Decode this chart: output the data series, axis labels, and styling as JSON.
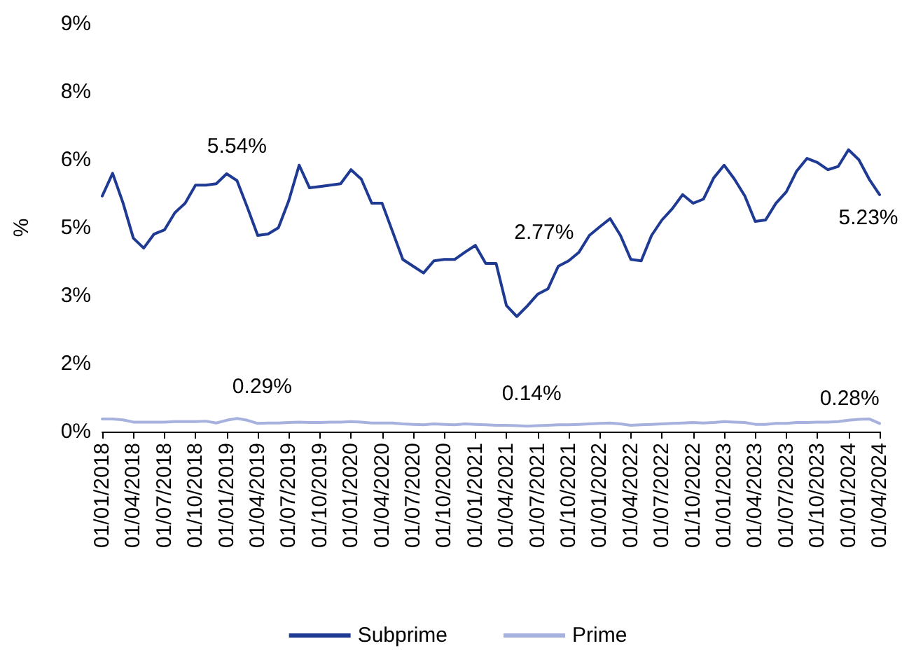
{
  "chart_data": {
    "type": "line",
    "ylabel": "%",
    "legend": "bottom",
    "grid": false,
    "marker": "none",
    "line_style": "solid",
    "x": [
      "2018-01",
      "2018-02",
      "2018-03",
      "2018-04",
      "2018-05",
      "2018-06",
      "2018-07",
      "2018-08",
      "2018-09",
      "2018-10",
      "2018-11",
      "2018-12",
      "2019-01",
      "2019-02",
      "2019-03",
      "2019-04",
      "2019-05",
      "2019-06",
      "2019-07",
      "2019-08",
      "2019-09",
      "2019-10",
      "2019-11",
      "2019-12",
      "2020-01",
      "2020-02",
      "2020-03",
      "2020-04",
      "2020-05",
      "2020-06",
      "2020-07",
      "2020-08",
      "2020-09",
      "2020-10",
      "2020-11",
      "2020-12",
      "2021-01",
      "2021-02",
      "2021-03",
      "2021-04",
      "2021-05",
      "2021-06",
      "2021-07",
      "2021-08",
      "2021-09",
      "2021-10",
      "2021-11",
      "2021-12",
      "2022-01",
      "2022-02",
      "2022-03",
      "2022-04",
      "2022-05",
      "2022-06",
      "2022-07",
      "2022-08",
      "2022-09",
      "2022-10",
      "2022-11",
      "2022-12",
      "2023-01",
      "2023-02",
      "2023-03",
      "2023-04",
      "2023-05",
      "2023-06",
      "2023-07",
      "2023-08",
      "2023-09",
      "2023-10",
      "2023-11",
      "2023-12",
      "2024-01",
      "2024-02",
      "2024-03",
      "2024-04"
    ],
    "series": [
      {
        "name": "Subprime",
        "color": "#1f3a93",
        "values": [
          5.2,
          5.7,
          5.05,
          4.27,
          4.05,
          4.36,
          4.45,
          4.83,
          5.04,
          5.44,
          5.44,
          5.47,
          5.69,
          5.54,
          4.95,
          4.33,
          4.36,
          4.5,
          5.1,
          5.88,
          5.38,
          5.41,
          5.44,
          5.47,
          5.78,
          5.57,
          5.04,
          5.04,
          4.42,
          3.8,
          3.65,
          3.5,
          3.77,
          3.8,
          3.8,
          3.96,
          4.11,
          3.71,
          3.71,
          2.78,
          2.54,
          2.77,
          3.03,
          3.15,
          3.65,
          3.77,
          3.96,
          4.33,
          4.52,
          4.7,
          4.33,
          3.8,
          3.77,
          4.33,
          4.67,
          4.92,
          5.23,
          5.04,
          5.13,
          5.6,
          5.88,
          5.57,
          5.2,
          4.64,
          4.67,
          5.04,
          5.29,
          5.75,
          6.03,
          5.94,
          5.78,
          5.85,
          6.22,
          6.0,
          5.57,
          5.23
        ]
      },
      {
        "name": "Prime",
        "color": "#a7b1dd",
        "values": [
          0.28,
          0.28,
          0.26,
          0.21,
          0.21,
          0.21,
          0.21,
          0.22,
          0.22,
          0.22,
          0.23,
          0.19,
          0.25,
          0.29,
          0.25,
          0.18,
          0.19,
          0.19,
          0.2,
          0.21,
          0.2,
          0.2,
          0.21,
          0.21,
          0.22,
          0.21,
          0.19,
          0.19,
          0.19,
          0.17,
          0.16,
          0.15,
          0.17,
          0.16,
          0.15,
          0.17,
          0.16,
          0.15,
          0.14,
          0.14,
          0.13,
          0.12,
          0.13,
          0.14,
          0.15,
          0.15,
          0.16,
          0.17,
          0.18,
          0.19,
          0.17,
          0.14,
          0.15,
          0.16,
          0.17,
          0.18,
          0.19,
          0.2,
          0.19,
          0.2,
          0.22,
          0.21,
          0.2,
          0.16,
          0.16,
          0.18,
          0.18,
          0.2,
          0.2,
          0.21,
          0.21,
          0.22,
          0.25,
          0.27,
          0.28,
          0.18
        ]
      }
    ],
    "xlim": [
      "2018-01",
      "2024-04"
    ],
    "xticks": [
      {
        "value": "2018-01",
        "label": "01/01/2018"
      },
      {
        "value": "2018-04",
        "label": "01/04/2018"
      },
      {
        "value": "2018-07",
        "label": "01/07/2018"
      },
      {
        "value": "2018-10",
        "label": "01/10/2018"
      },
      {
        "value": "2019-01",
        "label": "01/01/2019"
      },
      {
        "value": "2019-04",
        "label": "01/04/2019"
      },
      {
        "value": "2019-07",
        "label": "01/07/2019"
      },
      {
        "value": "2019-10",
        "label": "01/10/2019"
      },
      {
        "value": "2020-01",
        "label": "01/01/2020"
      },
      {
        "value": "2020-04",
        "label": "01/04/2020"
      },
      {
        "value": "2020-07",
        "label": "01/07/2020"
      },
      {
        "value": "2020-10",
        "label": "01/10/2020"
      },
      {
        "value": "2021-01",
        "label": "01/01/2021"
      },
      {
        "value": "2021-04",
        "label": "01/04/2021"
      },
      {
        "value": "2021-07",
        "label": "01/07/2021"
      },
      {
        "value": "2021-10",
        "label": "01/10/2021"
      },
      {
        "value": "2022-01",
        "label": "01/01/2022"
      },
      {
        "value": "2022-04",
        "label": "01/04/2022"
      },
      {
        "value": "2022-07",
        "label": "01/07/2022"
      },
      {
        "value": "2022-10",
        "label": "01/10/2022"
      },
      {
        "value": "2023-01",
        "label": "01/01/2023"
      },
      {
        "value": "2023-04",
        "label": "01/04/2023"
      },
      {
        "value": "2023-07",
        "label": "01/07/2023"
      },
      {
        "value": "2023-10",
        "label": "01/10/2023"
      },
      {
        "value": "2024-01",
        "label": "01/01/2024"
      },
      {
        "value": "2024-04",
        "label": "01/04/2024"
      }
    ],
    "ylim": [
      0,
      9
    ],
    "yticks": [
      {
        "value": 0,
        "label": "0%"
      },
      {
        "value": 1.5,
        "label": "2%"
      },
      {
        "value": 3,
        "label": "3%"
      },
      {
        "value": 4.5,
        "label": "5%"
      },
      {
        "value": 6,
        "label": "6%"
      },
      {
        "value": 7.5,
        "label": "8%"
      },
      {
        "value": 9,
        "label": "9%"
      }
    ],
    "annotations": [
      {
        "text": "5.54%",
        "x": "2019-02",
        "y": 5.54
      },
      {
        "text": "2.77%",
        "x": "2021-06",
        "y": 2.77
      },
      {
        "text": "5.23%",
        "x": "2024-04",
        "y": 5.23
      },
      {
        "text": "0.29%",
        "x": "2019-02",
        "y": 0.29
      },
      {
        "text": "0.14%",
        "x": "2021-04",
        "y": 0.14
      },
      {
        "text": "0.28%",
        "x": "2024-03",
        "y": 0.28
      }
    ]
  }
}
